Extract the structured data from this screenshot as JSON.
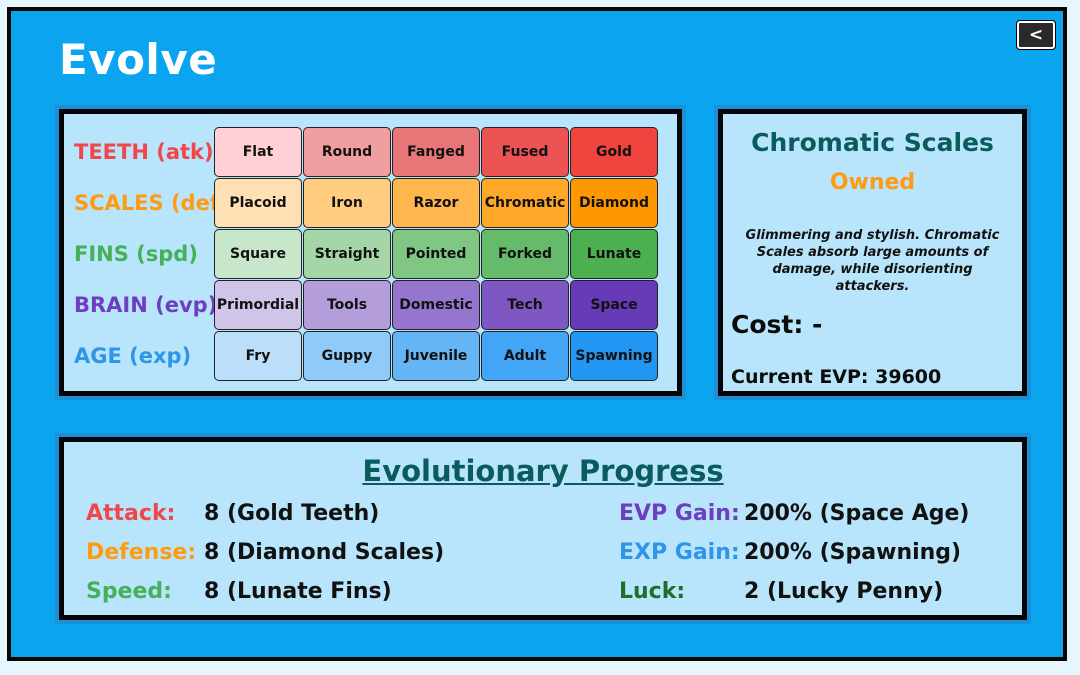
{
  "page": {
    "title": "Evolve",
    "back_label": "<"
  },
  "grid": {
    "rows": [
      {
        "label": "TEETH (atk)",
        "color": "#f0474b",
        "cells": [
          {
            "text": "Flat",
            "bg": "#ffd0d5"
          },
          {
            "text": "Round",
            "bg": "#f09ea0"
          },
          {
            "text": "Fanged",
            "bg": "#e87578"
          },
          {
            "text": "Fused",
            "bg": "#ec5355"
          },
          {
            "text": "Gold",
            "bg": "#f0443e"
          }
        ]
      },
      {
        "label": "SCALES (def)",
        "color": "#ff9a12",
        "cells": [
          {
            "text": "Placoid",
            "bg": "#ffe0b3"
          },
          {
            "text": "Iron",
            "bg": "#ffcc80"
          },
          {
            "text": "Razor",
            "bg": "#ffb74d"
          },
          {
            "text": "Chromatic",
            "bg": "#ffa726"
          },
          {
            "text": "Diamond",
            "bg": "#ff9800"
          }
        ]
      },
      {
        "label": "FINS (spd)",
        "color": "#45b058",
        "cells": [
          {
            "text": "Square",
            "bg": "#c8e6c9"
          },
          {
            "text": "Straight",
            "bg": "#a5d6a7"
          },
          {
            "text": "Pointed",
            "bg": "#81c784"
          },
          {
            "text": "Forked",
            "bg": "#66bb6a"
          },
          {
            "text": "Lunate",
            "bg": "#4caf50"
          }
        ]
      },
      {
        "label": "BRAIN (evp)",
        "color": "#6d3fbf",
        "cells": [
          {
            "text": "Primordial",
            "bg": "#d1c4e9"
          },
          {
            "text": "Tools",
            "bg": "#b39ddb"
          },
          {
            "text": "Domestic",
            "bg": "#9575cd"
          },
          {
            "text": "Tech",
            "bg": "#7e57c2"
          },
          {
            "text": "Space",
            "bg": "#673ab7"
          }
        ]
      },
      {
        "label": "AGE (exp)",
        "color": "#2f95e8",
        "cells": [
          {
            "text": "Fry",
            "bg": "#bbdefb"
          },
          {
            "text": "Guppy",
            "bg": "#90caf9"
          },
          {
            "text": "Juvenile",
            "bg": "#64b5f6"
          },
          {
            "text": "Adult",
            "bg": "#42a5f5"
          },
          {
            "text": "Spawning",
            "bg": "#2196f3"
          }
        ]
      }
    ]
  },
  "info": {
    "name": "Chromatic Scales",
    "status": "Owned",
    "description": "Glimmering and stylish. Chromatic Scales absorb large amounts of damage, while disorienting attackers.",
    "cost": "Cost: -",
    "current_evp": "Current EVP: 39600"
  },
  "progress": {
    "title": "Evolutionary Progress",
    "left": [
      {
        "label": "Attack:",
        "value": "8 (Gold Teeth)",
        "color": "#f0474b"
      },
      {
        "label": "Defense:",
        "value": "8 (Diamond Scales)",
        "color": "#ff9a12"
      },
      {
        "label": "Speed:",
        "value": "8 (Lunate Fins)",
        "color": "#45b058"
      }
    ],
    "right": [
      {
        "label": "EVP Gain:",
        "value": "200% (Space Age)",
        "color": "#6d3fbf"
      },
      {
        "label": "EXP Gain:",
        "value": "200% (Spawning)",
        "color": "#2f95e8"
      },
      {
        "label": "Luck:",
        "value": "2 (Lucky Penny)",
        "color": "#1f6e2a"
      }
    ]
  }
}
